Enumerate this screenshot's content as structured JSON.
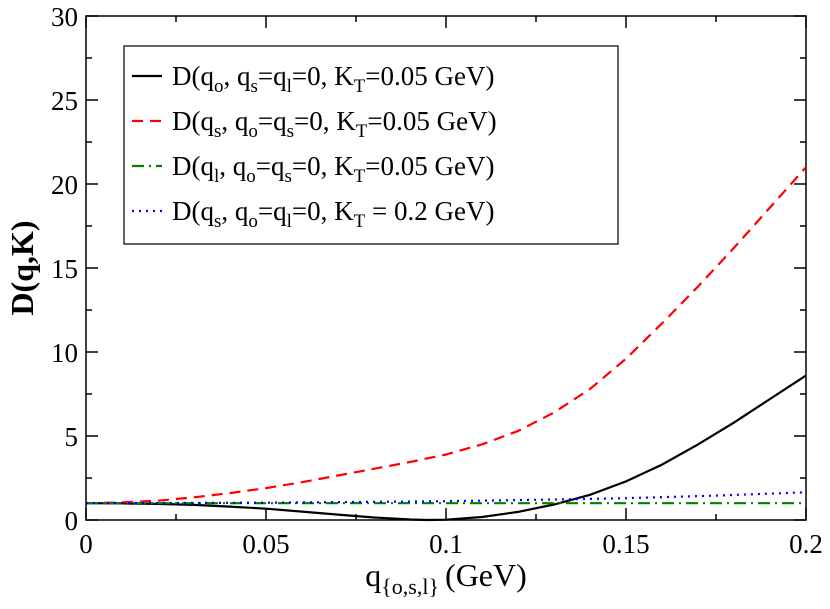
{
  "chart_data": {
    "type": "line",
    "title": "",
    "xlabel_main": "q",
    "xlabel_sub": "{o,s,l}",
    "xlabel_unit": "(GeV)",
    "ylabel": "D(q,K)",
    "xlim": [
      0,
      0.2
    ],
    "ylim": [
      0,
      30
    ],
    "xticks": [
      0,
      0.05,
      0.1,
      0.15,
      0.2
    ],
    "xtick_labels": [
      "0",
      "0.05",
      "0.1",
      "0.15",
      "0.2"
    ],
    "yticks": [
      0,
      5,
      10,
      15,
      20,
      25,
      30
    ],
    "ytick_labels": [
      "0",
      "5",
      "10",
      "15",
      "20",
      "25",
      "30"
    ],
    "grid": false,
    "legend_position": "top-left",
    "series": [
      {
        "legend": [
          "D(q",
          "o",
          ", q",
          "s",
          "=q",
          "l",
          "=0, K",
          "T",
          "=0.05 GeV)"
        ],
        "color": "#000000",
        "style": "solid",
        "x": [
          0,
          0.01,
          0.02,
          0.03,
          0.04,
          0.05,
          0.06,
          0.07,
          0.08,
          0.09,
          0.095,
          0.1,
          0.11,
          0.12,
          0.13,
          0.14,
          0.15,
          0.16,
          0.17,
          0.18,
          0.19,
          0.2
        ],
        "y": [
          1.0,
          0.99,
          0.96,
          0.9,
          0.8,
          0.67,
          0.5,
          0.32,
          0.15,
          0.03,
          0.0,
          0.02,
          0.18,
          0.48,
          0.92,
          1.5,
          2.3,
          3.3,
          4.5,
          5.8,
          7.2,
          8.6
        ]
      },
      {
        "legend": [
          "D(q",
          "s",
          ", q",
          "o",
          "=q",
          "s",
          "=0, K",
          "T",
          "=0.05 GeV)"
        ],
        "color": "#ff0000",
        "style": "dashed",
        "x": [
          0,
          0.01,
          0.02,
          0.03,
          0.04,
          0.05,
          0.06,
          0.07,
          0.08,
          0.09,
          0.1,
          0.11,
          0.12,
          0.13,
          0.14,
          0.15,
          0.16,
          0.17,
          0.18,
          0.19,
          0.2
        ],
        "y": [
          1.0,
          1.05,
          1.15,
          1.35,
          1.6,
          1.9,
          2.25,
          2.65,
          3.05,
          3.45,
          3.9,
          4.5,
          5.3,
          6.4,
          7.8,
          9.6,
          11.7,
          13.9,
          16.2,
          18.6,
          21.0
        ]
      },
      {
        "legend": [
          "D(q",
          "l",
          ", q",
          "o",
          "=q",
          "s",
          "=0, K",
          "T",
          "=0.05 GeV)"
        ],
        "color": "#008000",
        "style": "dashdot",
        "x": [
          0,
          0.05,
          0.1,
          0.15,
          0.2
        ],
        "y": [
          1.0,
          1.0,
          1.0,
          1.0,
          1.0
        ]
      },
      {
        "legend": [
          "D(q",
          "s",
          ", q",
          "o",
          "=q",
          "l",
          "=0, K",
          "T",
          " = 0.2 GeV)"
        ],
        "color": "#0000ff",
        "style": "dotted",
        "x": [
          0,
          0.025,
          0.05,
          0.075,
          0.1,
          0.125,
          0.15,
          0.175,
          0.2
        ],
        "y": [
          1.0,
          1.01,
          1.03,
          1.07,
          1.12,
          1.2,
          1.3,
          1.45,
          1.65
        ]
      }
    ]
  }
}
